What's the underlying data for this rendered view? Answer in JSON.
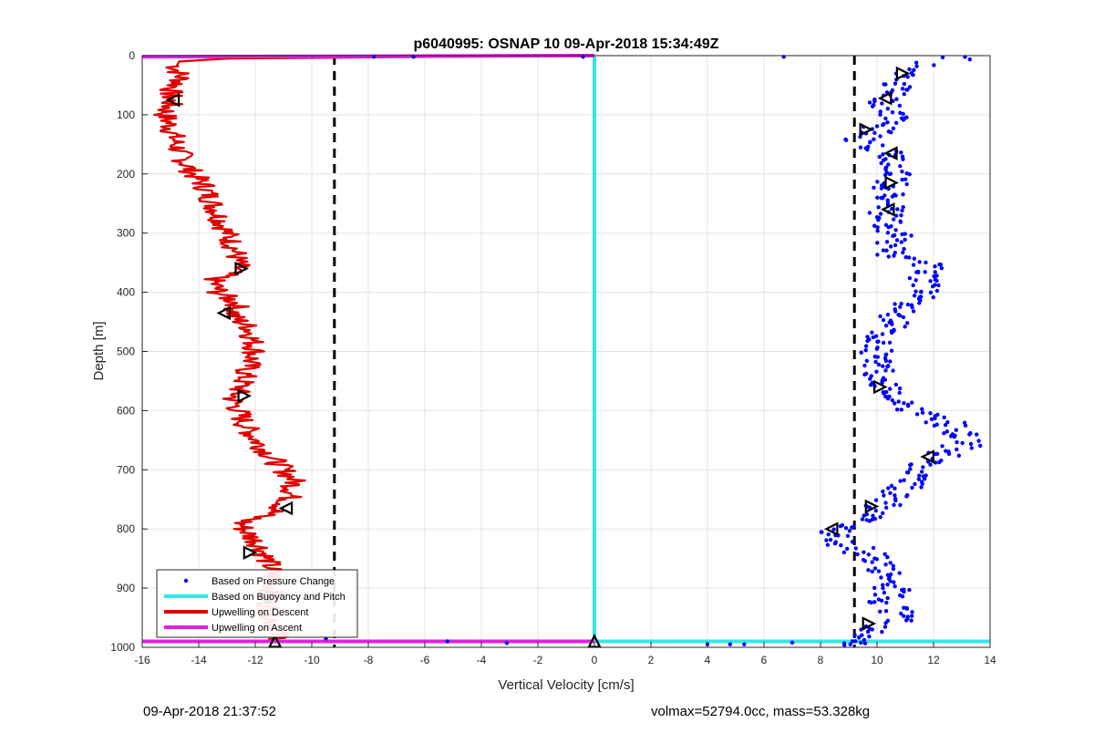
{
  "footer": {
    "timestamp": "09-Apr-2018 21:37:52",
    "volmax_mass": "volmax=52794.0cc, mass=53.328kg"
  },
  "chart_data": {
    "type": "scatter",
    "title": "p6040995: OSNAP 10 09-Apr-2018 15:34:49Z",
    "xlabel": "Vertical Velocity [cm/s]",
    "ylabel": "Depth [m]",
    "xlim": [
      -16,
      14
    ],
    "ylim": [
      0,
      1000
    ],
    "y_reversed": true,
    "grid": true,
    "xticks": [
      -16,
      -14,
      -12,
      -10,
      -8,
      -6,
      -4,
      -2,
      0,
      2,
      4,
      6,
      8,
      10,
      12,
      14
    ],
    "yticks": [
      0,
      100,
      200,
      300,
      400,
      500,
      600,
      700,
      800,
      900,
      1000
    ],
    "legend_position": "bottom-left",
    "legend": [
      {
        "label": "Based on Pressure Change",
        "color": "#0000ff",
        "style": "dot"
      },
      {
        "label": "Based on Buoyancy and Pitch",
        "color": "#33e6e6",
        "style": "line"
      },
      {
        "label": "Upwelling on Descent",
        "color": "#e00000",
        "style": "line"
      },
      {
        "label": "Upwelling on Ascent",
        "color": "#e020e0",
        "style": "line"
      }
    ],
    "dashed_lines_x": [
      -9.2,
      9.2
    ],
    "descent_upwelling": {
      "depth": [
        0,
        2,
        5,
        10,
        20,
        40,
        60,
        80,
        100,
        120,
        150,
        180,
        200,
        220,
        250,
        280,
        300,
        330,
        360,
        380,
        400,
        420,
        440,
        460,
        500,
        530,
        560,
        580,
        600,
        630,
        660,
        690,
        720,
        750,
        770,
        790,
        800,
        830,
        860,
        890,
        920,
        950,
        980,
        990
      ],
      "w": [
        0,
        -5,
        -13,
        -14.7,
        -14.8,
        -14.6,
        -15,
        -15,
        -15.2,
        -15,
        -14.8,
        -14.5,
        -14.2,
        -13.8,
        -13.5,
        -13.2,
        -13.0,
        -12.7,
        -12.6,
        -13.5,
        -13.3,
        -12.6,
        -12.8,
        -12.2,
        -12.0,
        -12.3,
        -12.5,
        -12.8,
        -12.6,
        -12.3,
        -11.8,
        -11.2,
        -10.6,
        -10.8,
        -11.3,
        -12.5,
        -12.4,
        -11.8,
        -11.5,
        -11.3,
        -11.6,
        -11.4,
        -11.2,
        -11.0
      ]
    },
    "ascent_upwelling": {
      "depth": [
        990,
        990,
        2,
        0
      ],
      "w": [
        -16,
        0,
        -16,
        0
      ]
    },
    "buoyancy_pitch_w": {
      "depth": [
        0,
        990,
        990
      ],
      "w": [
        0,
        0,
        14
      ]
    },
    "pressure_change_w": {
      "depth": [
        0,
        10,
        20,
        30,
        40,
        50,
        60,
        70,
        80,
        90,
        100,
        110,
        120,
        130,
        140,
        150,
        160,
        170,
        180,
        190,
        200,
        210,
        220,
        230,
        240,
        250,
        260,
        270,
        280,
        290,
        300,
        310,
        320,
        330,
        340,
        350,
        360,
        370,
        380,
        390,
        400,
        410,
        420,
        430,
        440,
        450,
        460,
        470,
        480,
        490,
        500,
        510,
        520,
        530,
        540,
        550,
        560,
        570,
        580,
        590,
        600,
        610,
        620,
        630,
        640,
        650,
        660,
        670,
        680,
        690,
        700,
        710,
        720,
        730,
        740,
        750,
        760,
        770,
        780,
        790,
        800,
        810,
        820,
        830,
        840,
        850,
        860,
        870,
        880,
        890,
        900,
        910,
        920,
        930,
        940,
        950,
        960,
        970,
        980,
        990
      ],
      "w": [
        12.8,
        11.6,
        11.2,
        10.9,
        10.8,
        10.7,
        10.5,
        10.3,
        10.4,
        10.6,
        10.8,
        10.5,
        10.0,
        9.6,
        9.4,
        9.8,
        10.4,
        10.6,
        10.7,
        10.8,
        10.6,
        10.5,
        10.4,
        10.4,
        10.5,
        10.4,
        10.3,
        10.4,
        10.5,
        10.6,
        10.7,
        10.6,
        10.5,
        10.6,
        11.6,
        11.8,
        11.9,
        11.7,
        11.8,
        11.6,
        11.4,
        11.2,
        11.0,
        10.8,
        10.7,
        10.5,
        10.4,
        10.2,
        10.1,
        10.0,
        9.9,
        9.9,
        10.0,
        10.1,
        10.0,
        10.2,
        10.4,
        10.6,
        10.8,
        11.2,
        11.7,
        12.2,
        12.6,
        12.9,
        13.1,
        13.3,
        12.8,
        12.3,
        11.8,
        11.5,
        11.3,
        11.4,
        11.1,
        10.8,
        10.5,
        10.3,
        10.0,
        9.8,
        9.4,
        9.0,
        8.6,
        8.5,
        8.8,
        9.4,
        9.8,
        10.0,
        10.2,
        10.4,
        10.5,
        10.5,
        10.6,
        10.4,
        10.3,
        10.5,
        10.8,
        10.7,
        10.2,
        9.8,
        9.5,
        9.3
      ]
    },
    "pressure_outliers": {
      "depth": [
        2,
        2,
        2,
        2,
        985,
        990,
        993,
        995,
        995,
        995,
        992
      ],
      "w": [
        6.7,
        -0.4,
        -7.8,
        -6.4,
        -9.5,
        -5.2,
        -3.1,
        4.0,
        4.8,
        5.3,
        7.0
      ]
    },
    "descent_markers": {
      "depth": [
        75,
        360,
        435,
        575,
        765,
        840,
        915,
        990
      ],
      "w": [
        -14.9,
        -12.5,
        -13.1,
        -12.4,
        -10.9,
        -12.2,
        -11.7,
        -11.3
      ]
    },
    "ascent_markers": {
      "depth": [
        30,
        72,
        125,
        165,
        215,
        260,
        560,
        678,
        762,
        800,
        960,
        990
      ],
      "w": [
        10.9,
        10.3,
        9.6,
        10.5,
        10.5,
        10.4,
        10.1,
        11.8,
        9.8,
        8.4,
        9.7,
        0
      ]
    }
  }
}
